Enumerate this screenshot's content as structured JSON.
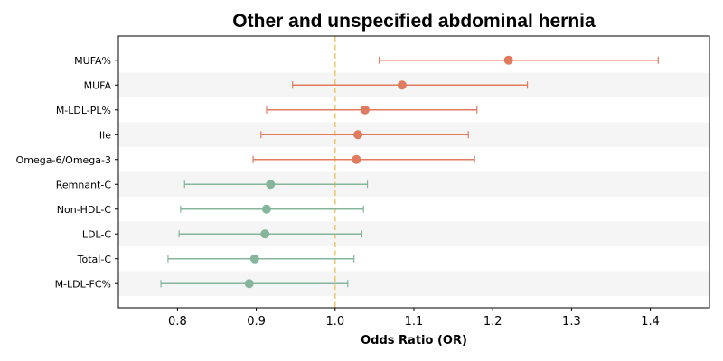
{
  "chart_data": {
    "type": "forest",
    "title": "Other and unspecified abdominal hernia",
    "xlabel": "Odds Ratio (OR)",
    "ylabel": "",
    "xlim": [
      0.725,
      1.475
    ],
    "xticks": [
      0.8,
      0.9,
      1.0,
      1.1,
      1.2,
      1.3,
      1.4
    ],
    "xtick_labels": [
      "0.8",
      "0.9",
      "1.0",
      "1.1",
      "1.2",
      "1.3",
      "1.4"
    ],
    "reference_line": {
      "x": 1.0,
      "style": "dashed",
      "color": "#f0c87a"
    },
    "grid": false,
    "row_banding": true,
    "colors": {
      "positive": "#e07b5f",
      "negative": "#85b59b",
      "band": "#f5f5f5"
    },
    "items": [
      {
        "label": "MUFA%",
        "or": 1.22,
        "lower": 1.056,
        "upper": 1.41,
        "group": "positive"
      },
      {
        "label": "MUFA",
        "or": 1.085,
        "lower": 0.946,
        "upper": 1.244,
        "group": "positive"
      },
      {
        "label": "M-LDL-PL%",
        "or": 1.038,
        "lower": 0.913,
        "upper": 1.18,
        "group": "positive"
      },
      {
        "label": "Ile",
        "or": 1.029,
        "lower": 0.906,
        "upper": 1.169,
        "group": "positive"
      },
      {
        "label": "Omega-6/Omega-3",
        "or": 1.027,
        "lower": 0.896,
        "upper": 1.177,
        "group": "positive"
      },
      {
        "label": "Remnant-C",
        "or": 0.918,
        "lower": 0.809,
        "upper": 1.041,
        "group": "negative"
      },
      {
        "label": "Non-HDL-C",
        "or": 0.913,
        "lower": 0.804,
        "upper": 1.036,
        "group": "negative"
      },
      {
        "label": "LDL-C",
        "or": 0.911,
        "lower": 0.802,
        "upper": 1.034,
        "group": "negative"
      },
      {
        "label": "Total-C",
        "or": 0.898,
        "lower": 0.788,
        "upper": 1.024,
        "group": "negative"
      },
      {
        "label": "M-LDL-FC%",
        "or": 0.891,
        "lower": 0.779,
        "upper": 1.016,
        "group": "negative"
      }
    ]
  }
}
